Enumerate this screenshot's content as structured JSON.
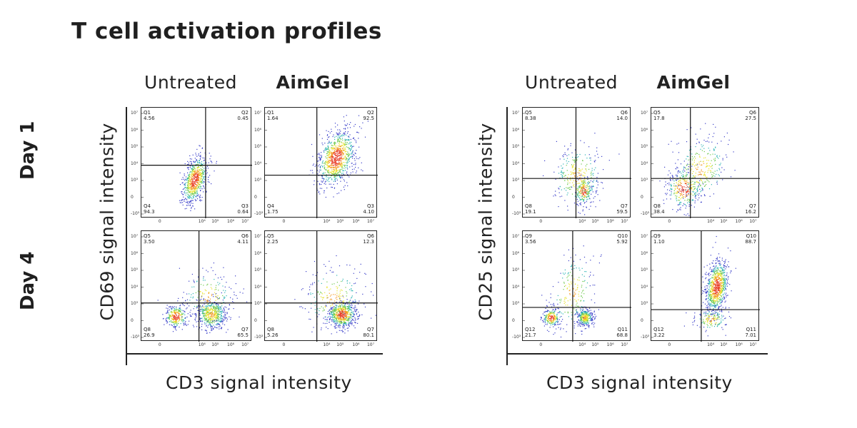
{
  "title": "T cell activation profiles",
  "row_labels": [
    "Day 1",
    "Day 4"
  ],
  "figures": [
    {
      "col_labels": [
        {
          "text": "Untreated",
          "bold": false
        },
        {
          "text": "AimGel",
          "bold": true
        }
      ],
      "ylabel": "CD69 signal intensity",
      "xlabel": "CD3 signal intensity"
    },
    {
      "col_labels": [
        {
          "text": "Untreated",
          "bold": false
        },
        {
          "text": "AimGel",
          "bold": true
        }
      ],
      "ylabel": "CD25 signal intensity",
      "xlabel": "CD3 signal intensity"
    }
  ],
  "chart_data": [
    {
      "type": "scatter",
      "subtype": "flow-cytometry-density",
      "marker": "CD69",
      "x_axis_ticks": [
        "0",
        "10⁴",
        "10⁵",
        "10⁶",
        "10⁷"
      ],
      "y_axis_ticks": [
        "10⁷",
        "10⁶",
        "10⁵",
        "10⁴",
        "10³",
        "0",
        "-10³"
      ],
      "panels": [
        {
          "day": "Day 1",
          "condition": "Untreated",
          "quadrants": [
            {
              "name": "Q1",
              "value": "4.56"
            },
            {
              "name": "Q2",
              "value": "0.45"
            },
            {
              "name": "Q3",
              "value": "0.64"
            },
            {
              "name": "Q4",
              "value": "94.3"
            }
          ],
          "gate": {
            "x": 0.58,
            "y": 0.52
          },
          "clusters": [
            {
              "cx": 0.48,
              "cy": 0.65,
              "sx": 0.05,
              "sy": 0.11,
              "tilt": -0.6,
              "n": 700
            }
          ]
        },
        {
          "day": "Day 1",
          "condition": "AimGel",
          "quadrants": [
            {
              "name": "Q1",
              "value": "1.64"
            },
            {
              "name": "Q2",
              "value": "92.5"
            },
            {
              "name": "Q3",
              "value": "4.10"
            },
            {
              "name": "Q4",
              "value": "1.75"
            }
          ],
          "gate": {
            "x": 0.46,
            "y": 0.61
          },
          "clusters": [
            {
              "cx": 0.63,
              "cy": 0.45,
              "sx": 0.08,
              "sy": 0.13,
              "tilt": -0.6,
              "n": 900
            }
          ]
        },
        {
          "day": "Day 4",
          "condition": "Untreated",
          "quadrants": [
            {
              "name": "Q5",
              "value": "3.50"
            },
            {
              "name": "Q6",
              "value": "4.11"
            },
            {
              "name": "Q7",
              "value": "65.5"
            },
            {
              "name": "Q8",
              "value": "26.9"
            }
          ],
          "gate": {
            "x": 0.52,
            "y": 0.65
          },
          "clusters": [
            {
              "cx": 0.31,
              "cy": 0.77,
              "sx": 0.05,
              "sy": 0.05,
              "tilt": 0,
              "n": 280
            },
            {
              "cx": 0.63,
              "cy": 0.75,
              "sx": 0.07,
              "sy": 0.07,
              "tilt": 0,
              "n": 500
            },
            {
              "cx": 0.6,
              "cy": 0.6,
              "sx": 0.12,
              "sy": 0.13,
              "tilt": 0,
              "n": 200
            }
          ]
        },
        {
          "day": "Day 4",
          "condition": "AimGel",
          "quadrants": [
            {
              "name": "Q5",
              "value": "2.25"
            },
            {
              "name": "Q6",
              "value": "12.3"
            },
            {
              "name": "Q7",
              "value": "80.1"
            },
            {
              "name": "Q8",
              "value": "5.26"
            }
          ],
          "gate": {
            "x": 0.46,
            "y": 0.65
          },
          "clusters": [
            {
              "cx": 0.68,
              "cy": 0.75,
              "sx": 0.06,
              "sy": 0.06,
              "tilt": 0,
              "n": 600
            },
            {
              "cx": 0.6,
              "cy": 0.6,
              "sx": 0.14,
              "sy": 0.15,
              "tilt": 0,
              "n": 260
            }
          ]
        }
      ]
    },
    {
      "type": "scatter",
      "subtype": "flow-cytometry-density",
      "marker": "CD25",
      "x_axis_ticks": [
        "0",
        "10⁴",
        "10⁵",
        "10⁶",
        "10⁷"
      ],
      "y_axis_ticks": [
        "10⁷",
        "10⁶",
        "10⁵",
        "10⁴",
        "10³",
        "0",
        "-10³"
      ],
      "panels": [
        {
          "day": "Day 1",
          "condition": "Untreated",
          "quadrants": [
            {
              "name": "Q5",
              "value": "8.38"
            },
            {
              "name": "Q6",
              "value": "14.0"
            },
            {
              "name": "Q7",
              "value": "59.5"
            },
            {
              "name": "Q8",
              "value": "19.1"
            }
          ],
          "gate": {
            "x": 0.49,
            "y": 0.64
          },
          "clusters": [
            {
              "cx": 0.56,
              "cy": 0.75,
              "sx": 0.04,
              "sy": 0.06,
              "tilt": 0,
              "n": 200
            },
            {
              "cx": 0.5,
              "cy": 0.62,
              "sx": 0.12,
              "sy": 0.15,
              "tilt": 0,
              "n": 300
            }
          ]
        },
        {
          "day": "Day 1",
          "condition": "AimGel",
          "quadrants": [
            {
              "name": "Q5",
              "value": "17.8"
            },
            {
              "name": "Q6",
              "value": "27.5"
            },
            {
              "name": "Q7",
              "value": "16.2"
            },
            {
              "name": "Q8",
              "value": "38.4"
            }
          ],
          "gate": {
            "x": 0.36,
            "y": 0.64
          },
          "clusters": [
            {
              "cx": 0.3,
              "cy": 0.73,
              "sx": 0.08,
              "sy": 0.09,
              "tilt": 0,
              "n": 300
            },
            {
              "cx": 0.45,
              "cy": 0.55,
              "sx": 0.13,
              "sy": 0.16,
              "tilt": -0.4,
              "n": 300
            }
          ]
        },
        {
          "day": "Day 4",
          "condition": "Untreated",
          "quadrants": [
            {
              "name": "Q9",
              "value": "3.56"
            },
            {
              "name": "Q10",
              "value": "5.92"
            },
            {
              "name": "Q11",
              "value": "68.8"
            },
            {
              "name": "Q12",
              "value": "21.7"
            }
          ],
          "gate": {
            "x": 0.46,
            "y": 0.69
          },
          "clusters": [
            {
              "cx": 0.26,
              "cy": 0.78,
              "sx": 0.04,
              "sy": 0.04,
              "tilt": 0,
              "n": 220
            },
            {
              "cx": 0.57,
              "cy": 0.78,
              "sx": 0.04,
              "sy": 0.04,
              "tilt": 0,
              "n": 320
            },
            {
              "cx": 0.45,
              "cy": 0.55,
              "sx": 0.1,
              "sy": 0.18,
              "tilt": -0.4,
              "n": 200
            }
          ]
        },
        {
          "day": "Day 4",
          "condition": "AimGel",
          "quadrants": [
            {
              "name": "Q9",
              "value": "1.10"
            },
            {
              "name": "Q10",
              "value": "88.7"
            },
            {
              "name": "Q11",
              "value": "7.01"
            },
            {
              "name": "Q12",
              "value": "3.22"
            }
          ],
          "gate": {
            "x": 0.46,
            "y": 0.71
          },
          "clusters": [
            {
              "cx": 0.6,
              "cy": 0.5,
              "sx": 0.05,
              "sy": 0.12,
              "tilt": -0.3,
              "n": 800
            },
            {
              "cx": 0.55,
              "cy": 0.8,
              "sx": 0.08,
              "sy": 0.05,
              "tilt": 0,
              "n": 150
            }
          ]
        }
      ]
    }
  ]
}
